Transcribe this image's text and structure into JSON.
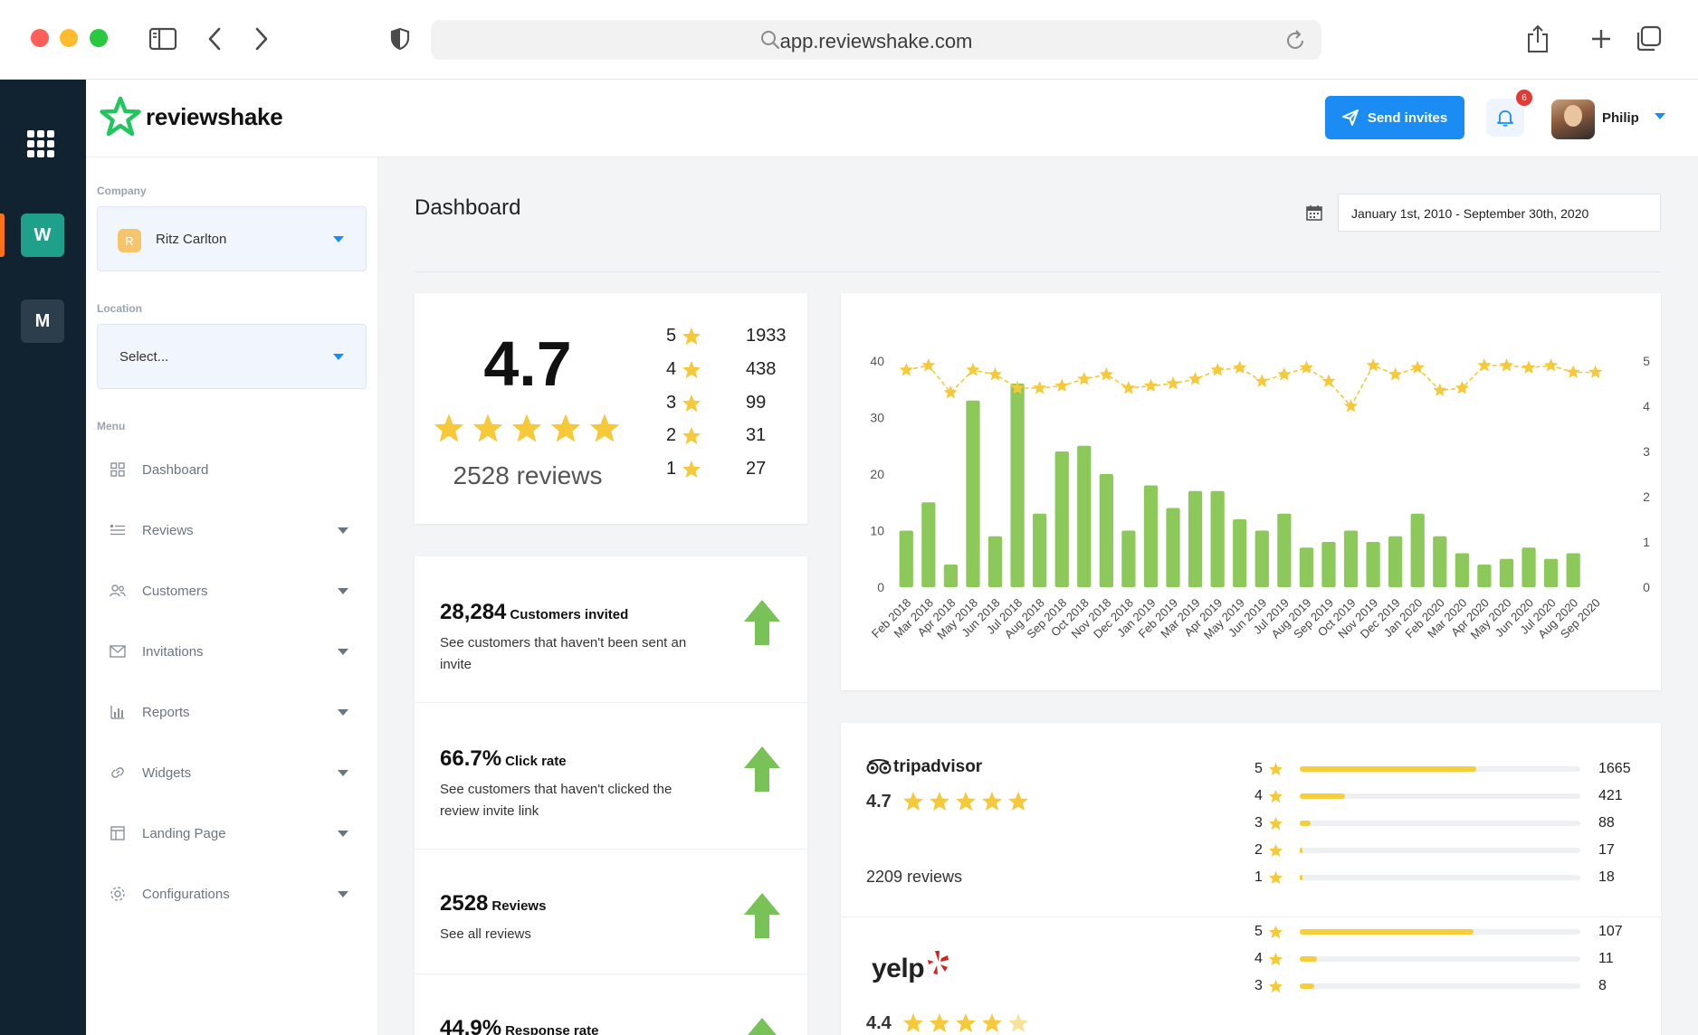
{
  "browser": {
    "url": "app.reviewshake.com"
  },
  "rail": {
    "workspaces": [
      "W",
      "M"
    ]
  },
  "header": {
    "logo_text": "reviewshake",
    "send_invites_label": "Send invites",
    "notification_count": "6",
    "user_name": "Philip"
  },
  "sidebar": {
    "company_label": "Company",
    "company_initial": "R",
    "company_value": "Ritz Carlton",
    "location_label": "Location",
    "location_placeholder": "Select...",
    "menu_label": "Menu",
    "items": [
      {
        "label": "Dashboard",
        "icon": "grid-icon"
      },
      {
        "label": "Reviews",
        "icon": "list-icon"
      },
      {
        "label": "Customers",
        "icon": "users-icon"
      },
      {
        "label": "Invitations",
        "icon": "mail-icon"
      },
      {
        "label": "Reports",
        "icon": "bar-chart-icon"
      },
      {
        "label": "Widgets",
        "icon": "link-icon"
      },
      {
        "label": "Landing Page",
        "icon": "layout-icon"
      },
      {
        "label": "Configurations",
        "icon": "gear-icon"
      }
    ]
  },
  "dashboard": {
    "title": "Dashboard",
    "date_range": "January 1st, 2010 - September 30th, 2020",
    "overall_rating": "4.7",
    "overall_reviews": "2528 reviews",
    "distribution": [
      {
        "stars": "5",
        "count": "1933"
      },
      {
        "stars": "4",
        "count": "438"
      },
      {
        "stars": "3",
        "count": "99"
      },
      {
        "stars": "2",
        "count": "31"
      },
      {
        "stars": "1",
        "count": "27"
      }
    ],
    "stats": [
      {
        "value": "28,284",
        "label": "Customers invited",
        "desc": "See customers that haven't been sent an invite"
      },
      {
        "value": "66.7%",
        "label": "Click rate",
        "desc": "See customers that haven't clicked the review invite link"
      },
      {
        "value": "2528",
        "label": "Reviews",
        "desc": "See all reviews"
      },
      {
        "value": "44.9%",
        "label": "Response rate",
        "desc": ""
      }
    ],
    "platforms": [
      {
        "name": "tripadvisor",
        "rating": "4.7",
        "reviews": "2209 reviews",
        "bars": [
          {
            "stars": "5",
            "count": "1665",
            "fraction": 0.63
          },
          {
            "stars": "4",
            "count": "421",
            "fraction": 0.16
          },
          {
            "stars": "3",
            "count": "88",
            "fraction": 0.04
          },
          {
            "stars": "2",
            "count": "17",
            "fraction": 0.01
          },
          {
            "stars": "1",
            "count": "18",
            "fraction": 0.01
          }
        ]
      },
      {
        "name": "yelp",
        "rating": "4.4",
        "reviews": "",
        "bars": [
          {
            "stars": "5",
            "count": "107",
            "fraction": 0.62
          },
          {
            "stars": "4",
            "count": "11",
            "fraction": 0.06
          },
          {
            "stars": "3",
            "count": "8",
            "fraction": 0.05
          }
        ]
      }
    ]
  },
  "colors": {
    "accent": "#1a8cf3",
    "bar_green": "#8dc85a",
    "star_yellow": "#f6c93b",
    "rail_dark": "#112331",
    "arrow_green": "#78c257"
  },
  "chart_data": {
    "type": "bar",
    "categories": [
      "Feb 2018",
      "Mar 2018",
      "Apr 2018",
      "May 2018",
      "Jun 2018",
      "Jul 2018",
      "Aug 2018",
      "Sep 2018",
      "Oct 2018",
      "Nov 2018",
      "Dec 2018",
      "Jan 2019",
      "Feb 2019",
      "Mar 2019",
      "Apr 2019",
      "May 2019",
      "Jun 2019",
      "Jul 2019",
      "Aug 2019",
      "Sep 2019",
      "Oct 2019",
      "Nov 2019",
      "Dec 2019",
      "Jan 2020",
      "Feb 2020",
      "Mar 2020",
      "Apr 2020",
      "May 2020",
      "Jun 2020",
      "Jul 2020",
      "Aug 2020",
      "Sep 2020"
    ],
    "series": [
      {
        "values": [
          10,
          15,
          4,
          33,
          9,
          36,
          13,
          24,
          25,
          20,
          10,
          18,
          14,
          17,
          17,
          12,
          10,
          13,
          7,
          8,
          10,
          8,
          9,
          13,
          9,
          6,
          4,
          5,
          7,
          5,
          6,
          0
        ],
        "axis": "left",
        "kind": "bar"
      },
      {
        "values": [
          4.8,
          4.9,
          4.3,
          4.8,
          4.7,
          4.4,
          4.4,
          4.45,
          4.6,
          4.7,
          4.4,
          4.45,
          4.5,
          4.6,
          4.8,
          4.85,
          4.55,
          4.7,
          4.85,
          4.55,
          4.0,
          4.9,
          4.7,
          4.85,
          4.35,
          4.4,
          4.9,
          4.9,
          4.85,
          4.9,
          4.75,
          4.75
        ],
        "axis": "right",
        "kind": "line"
      }
    ],
    "ylim": [
      0,
      40
    ],
    "y_ticks": [
      "0",
      "10",
      "20",
      "30",
      "40"
    ],
    "y2lim": [
      0,
      5
    ],
    "y2_ticks": [
      "0",
      "1",
      "2",
      "3",
      "4",
      "5"
    ],
    "grid": false
  }
}
